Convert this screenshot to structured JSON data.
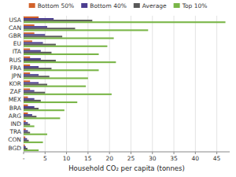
{
  "chart_data": {
    "type": "bar",
    "orientation": "horizontal",
    "xlabel": "Household CO₂ per capita (tonnes)",
    "categories": [
      "USA",
      "CAN",
      "GBR",
      "EU",
      "ITA",
      "RUS",
      "FRA",
      "JPN",
      "KOR",
      "ZAF",
      "MEX",
      "BRA",
      "ARG",
      "IND",
      "TRA",
      "CON",
      "BGD"
    ],
    "series": [
      {
        "name": "Bottom 50%",
        "color": "#d2622a",
        "values": [
          3.5,
          2.5,
          2.5,
          2.0,
          1.5,
          1.5,
          1.5,
          1.5,
          1.5,
          1.5,
          1.0,
          1.0,
          1.0,
          0.5,
          0.5,
          0.4,
          0.3
        ]
      },
      {
        "name": "Bottom 40%",
        "color": "#4b3d8f",
        "values": [
          7.0,
          5.5,
          5.0,
          4.5,
          4.0,
          4.0,
          3.5,
          3.5,
          3.5,
          2.5,
          2.5,
          2.5,
          2.0,
          1.0,
          1.0,
          0.8,
          0.5
        ]
      },
      {
        "name": "Average",
        "color": "#595959",
        "values": [
          16.0,
          12.0,
          9.0,
          7.5,
          6.5,
          7.5,
          6.5,
          6.0,
          5.5,
          5.0,
          4.0,
          3.5,
          3.0,
          1.5,
          1.5,
          1.2,
          0.9
        ]
      },
      {
        "name": "Top 10%",
        "color": "#7ab648",
        "values": [
          47.0,
          29.0,
          21.0,
          19.5,
          17.5,
          21.5,
          17.5,
          15.0,
          14.5,
          20.5,
          12.5,
          9.5,
          8.5,
          2.5,
          5.5,
          4.5,
          3.5
        ]
      }
    ],
    "xlim": [
      0,
      48
    ],
    "xticks": [
      {
        "value": 0,
        "label": "-"
      },
      5,
      10,
      15,
      20,
      25,
      30,
      35,
      40,
      45
    ],
    "grid": true,
    "legend": "top"
  }
}
